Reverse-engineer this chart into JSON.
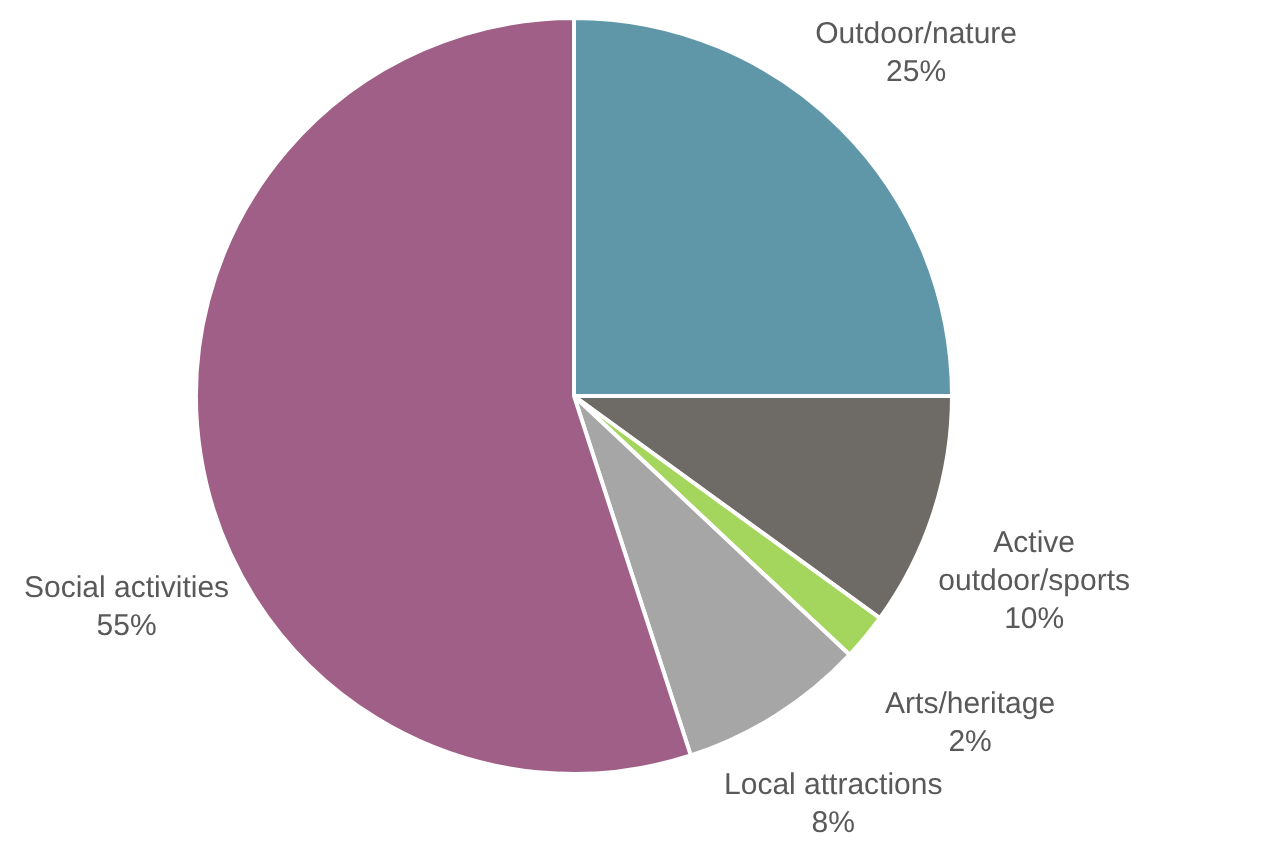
{
  "chart_data": {
    "type": "pie",
    "categories": [
      "Outdoor/nature",
      "Active outdoor/sports",
      "Arts/heritage",
      "Local attractions",
      "Social activities"
    ],
    "values": [
      25,
      10,
      2,
      8,
      55
    ],
    "colors": [
      "#5f97a8",
      "#6e6a66",
      "#a4d65e",
      "#a6a6a6",
      "#a05f87"
    ],
    "value_labels": [
      "25%",
      "10%",
      "2%",
      "8%",
      "55%"
    ],
    "legend": false
  }
}
